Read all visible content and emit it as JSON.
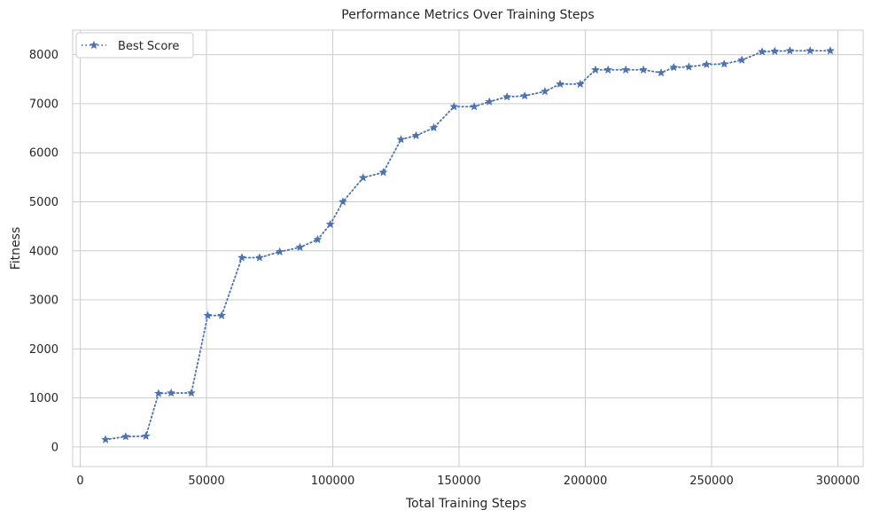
{
  "chart_data": {
    "type": "line",
    "title": "Performance Metrics Over Training Steps",
    "xlabel": "Total Training Steps",
    "ylabel": "Fitness",
    "xlim": [
      -3000,
      310000
    ],
    "ylim": [
      -400,
      8500
    ],
    "xticks": [
      0,
      50000,
      100000,
      150000,
      200000,
      250000,
      300000
    ],
    "xtick_labels": [
      "0",
      "50000",
      "100000",
      "150000",
      "200000",
      "250000",
      "300000"
    ],
    "yticks": [
      0,
      1000,
      2000,
      3000,
      4000,
      5000,
      6000,
      7000,
      8000
    ],
    "ytick_labels": [
      "0",
      "1000",
      "2000",
      "3000",
      "4000",
      "5000",
      "6000",
      "7000",
      "8000"
    ],
    "grid": true,
    "legend_position": "top-left",
    "series": [
      {
        "name": "Best Score",
        "color": "#4c72b0",
        "line_style": "dotted",
        "marker": "star",
        "x": [
          10000,
          18000,
          26000,
          31000,
          36000,
          44000,
          50500,
          56000,
          64000,
          71000,
          79000,
          87000,
          94000,
          99000,
          104000,
          112000,
          120000,
          127000,
          133000,
          140000,
          148000,
          156000,
          162000,
          169000,
          176000,
          184000,
          190000,
          198000,
          204000,
          209000,
          216000,
          223000,
          230000,
          235000,
          241000,
          248000,
          255000,
          262000,
          270000,
          275000,
          281000,
          289000,
          297000
        ],
        "y": [
          150,
          210,
          220,
          1090,
          1100,
          1100,
          2680,
          2680,
          3860,
          3860,
          3980,
          4070,
          4230,
          4540,
          5000,
          5490,
          5600,
          6270,
          6350,
          6510,
          6940,
          6940,
          7040,
          7140,
          7160,
          7250,
          7400,
          7400,
          7690,
          7690,
          7690,
          7690,
          7630,
          7740,
          7750,
          7800,
          7810,
          7890,
          8060,
          8070,
          8080,
          8080,
          8080
        ]
      }
    ]
  }
}
